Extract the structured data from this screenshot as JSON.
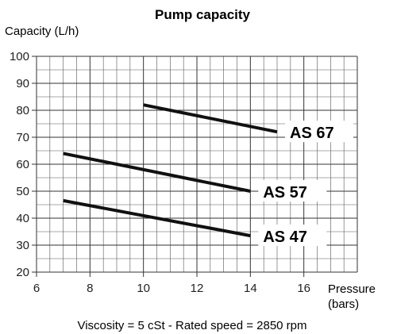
{
  "chart_data": {
    "type": "line",
    "title": "Pump capacity",
    "ylabel": "Capacity (L/h)",
    "xlabel_line1": "Pressure",
    "xlabel_line2": "(bars)",
    "footer": "Viscosity = 5 cSt  -  Rated speed = 2850 rpm",
    "xlim": [
      6,
      18
    ],
    "ylim": [
      20,
      100
    ],
    "grid": true,
    "x_ticks": [
      6,
      8,
      10,
      12,
      14,
      16
    ],
    "y_ticks": [
      20,
      30,
      40,
      50,
      60,
      70,
      80,
      90,
      100
    ],
    "series": [
      {
        "name": "AS 67",
        "x": [
          10,
          15
        ],
        "y": [
          82,
          72
        ]
      },
      {
        "name": "AS 57",
        "x": [
          7,
          14
        ],
        "y": [
          64,
          50
        ]
      },
      {
        "name": "AS 47",
        "x": [
          7,
          14
        ],
        "y": [
          46.5,
          33.5
        ]
      }
    ]
  }
}
